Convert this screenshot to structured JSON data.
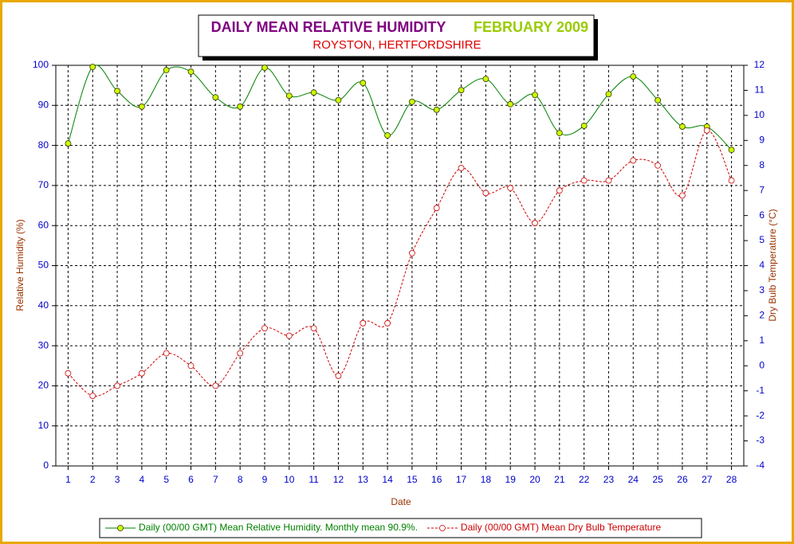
{
  "chart_data": {
    "type": "line",
    "title": "DAILY MEAN RELATIVE HUMIDITY",
    "title_date": "FEBRUARY 2009",
    "subtitle": "ROYSTON, HERTFORDSHIRE",
    "x_label": "Date",
    "y_label": "Relative Humidity (%)",
    "y2_label": "Dry Bulb Temperature (°C)",
    "x": [
      1,
      2,
      3,
      4,
      5,
      6,
      7,
      8,
      9,
      10,
      11,
      12,
      13,
      14,
      15,
      16,
      17,
      18,
      19,
      20,
      21,
      22,
      23,
      24,
      25,
      26,
      27,
      28
    ],
    "xlim": [
      0.5,
      28.5
    ],
    "xticks": [
      1,
      2,
      3,
      4,
      5,
      6,
      7,
      8,
      9,
      10,
      11,
      12,
      13,
      14,
      15,
      16,
      17,
      18,
      19,
      20,
      21,
      22,
      23,
      24,
      25,
      26,
      27,
      28
    ],
    "ylim": [
      0,
      100
    ],
    "yticks": [
      0,
      10,
      20,
      30,
      40,
      50,
      60,
      70,
      80,
      90,
      100
    ],
    "y2lim": [
      -4,
      12
    ],
    "y2ticks": [
      -4,
      -3,
      -2,
      -1,
      0,
      1,
      2,
      3,
      4,
      5,
      6,
      7,
      8,
      9,
      10,
      11,
      12
    ],
    "grid": true,
    "smooth": true,
    "legend": "bottom",
    "series": [
      {
        "name": "Daily (00/00 GMT) Mean Relative Humidity. Monthly mean 90.9%.",
        "color": "#008000",
        "marker_color": "#ccff00",
        "dashed": false,
        "values": [
          80.5,
          99.6,
          93.6,
          89.7,
          98.8,
          98.4,
          92.0,
          89.7,
          99.4,
          92.4,
          93.2,
          91.3,
          95.6,
          82.5,
          90.9,
          88.9,
          93.8,
          96.6,
          90.3,
          92.6,
          83.1,
          84.9,
          92.8,
          97.2,
          91.3,
          84.7,
          84.7,
          78.9
        ]
      },
      {
        "name": "Daily (00/00 GMT) Mean Dry Bulb Temperature",
        "color": "#cc0000",
        "marker_color": "#ffffff",
        "dashed": true,
        "axis": "y2",
        "values": [
          -0.3,
          -1.2,
          -0.8,
          -0.3,
          0.5,
          0.0,
          -0.8,
          0.5,
          1.5,
          1.2,
          1.5,
          -0.4,
          1.7,
          1.7,
          4.5,
          6.3,
          7.9,
          6.9,
          7.1,
          5.7,
          7.0,
          7.4,
          7.4,
          8.2,
          8.0,
          6.8,
          9.4,
          7.4
        ]
      }
    ]
  }
}
